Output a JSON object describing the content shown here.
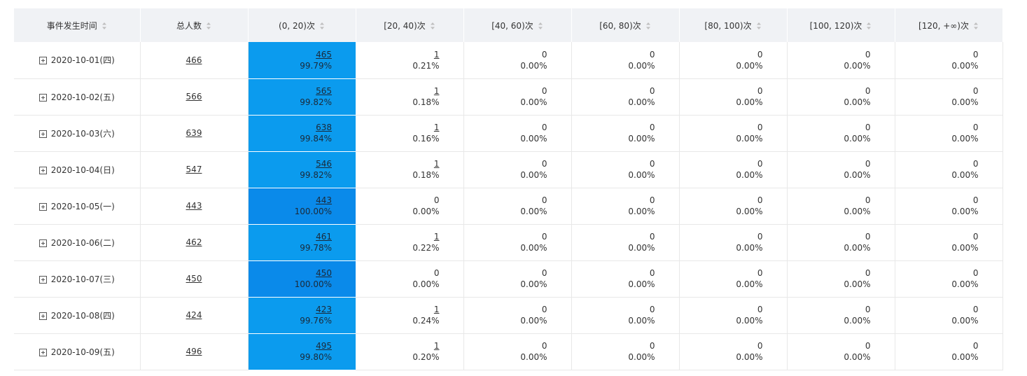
{
  "table": {
    "headers": [
      "事件发生时间",
      "总人数",
      "(0, 20)次",
      "[20, 40)次",
      "[40, 60)次",
      "[60, 80)次",
      "[80, 100)次",
      "[100, 120)次",
      "[120, +∞)次"
    ],
    "rows": [
      {
        "date": "2020-10-01(四)",
        "total": "466",
        "buckets": [
          {
            "count": "465",
            "pct": "99.79%"
          },
          {
            "count": "1",
            "pct": "0.21%"
          },
          {
            "count": "0",
            "pct": "0.00%"
          },
          {
            "count": "0",
            "pct": "0.00%"
          },
          {
            "count": "0",
            "pct": "0.00%"
          },
          {
            "count": "0",
            "pct": "0.00%"
          },
          {
            "count": "0",
            "pct": "0.00%"
          }
        ]
      },
      {
        "date": "2020-10-02(五)",
        "total": "566",
        "buckets": [
          {
            "count": "565",
            "pct": "99.82%"
          },
          {
            "count": "1",
            "pct": "0.18%"
          },
          {
            "count": "0",
            "pct": "0.00%"
          },
          {
            "count": "0",
            "pct": "0.00%"
          },
          {
            "count": "0",
            "pct": "0.00%"
          },
          {
            "count": "0",
            "pct": "0.00%"
          },
          {
            "count": "0",
            "pct": "0.00%"
          }
        ]
      },
      {
        "date": "2020-10-03(六)",
        "total": "639",
        "buckets": [
          {
            "count": "638",
            "pct": "99.84%"
          },
          {
            "count": "1",
            "pct": "0.16%"
          },
          {
            "count": "0",
            "pct": "0.00%"
          },
          {
            "count": "0",
            "pct": "0.00%"
          },
          {
            "count": "0",
            "pct": "0.00%"
          },
          {
            "count": "0",
            "pct": "0.00%"
          },
          {
            "count": "0",
            "pct": "0.00%"
          }
        ]
      },
      {
        "date": "2020-10-04(日)",
        "total": "547",
        "buckets": [
          {
            "count": "546",
            "pct": "99.82%"
          },
          {
            "count": "1",
            "pct": "0.18%"
          },
          {
            "count": "0",
            "pct": "0.00%"
          },
          {
            "count": "0",
            "pct": "0.00%"
          },
          {
            "count": "0",
            "pct": "0.00%"
          },
          {
            "count": "0",
            "pct": "0.00%"
          },
          {
            "count": "0",
            "pct": "0.00%"
          }
        ]
      },
      {
        "date": "2020-10-05(一)",
        "total": "443",
        "buckets": [
          {
            "count": "443",
            "pct": "100.00%"
          },
          {
            "count": "0",
            "pct": "0.00%"
          },
          {
            "count": "0",
            "pct": "0.00%"
          },
          {
            "count": "0",
            "pct": "0.00%"
          },
          {
            "count": "0",
            "pct": "0.00%"
          },
          {
            "count": "0",
            "pct": "0.00%"
          },
          {
            "count": "0",
            "pct": "0.00%"
          }
        ]
      },
      {
        "date": "2020-10-06(二)",
        "total": "462",
        "buckets": [
          {
            "count": "461",
            "pct": "99.78%"
          },
          {
            "count": "1",
            "pct": "0.22%"
          },
          {
            "count": "0",
            "pct": "0.00%"
          },
          {
            "count": "0",
            "pct": "0.00%"
          },
          {
            "count": "0",
            "pct": "0.00%"
          },
          {
            "count": "0",
            "pct": "0.00%"
          },
          {
            "count": "0",
            "pct": "0.00%"
          }
        ]
      },
      {
        "date": "2020-10-07(三)",
        "total": "450",
        "buckets": [
          {
            "count": "450",
            "pct": "100.00%"
          },
          {
            "count": "0",
            "pct": "0.00%"
          },
          {
            "count": "0",
            "pct": "0.00%"
          },
          {
            "count": "0",
            "pct": "0.00%"
          },
          {
            "count": "0",
            "pct": "0.00%"
          },
          {
            "count": "0",
            "pct": "0.00%"
          },
          {
            "count": "0",
            "pct": "0.00%"
          }
        ]
      },
      {
        "date": "2020-10-08(四)",
        "total": "424",
        "buckets": [
          {
            "count": "423",
            "pct": "99.76%"
          },
          {
            "count": "1",
            "pct": "0.24%"
          },
          {
            "count": "0",
            "pct": "0.00%"
          },
          {
            "count": "0",
            "pct": "0.00%"
          },
          {
            "count": "0",
            "pct": "0.00%"
          },
          {
            "count": "0",
            "pct": "0.00%"
          },
          {
            "count": "0",
            "pct": "0.00%"
          }
        ]
      },
      {
        "date": "2020-10-09(五)",
        "total": "496",
        "buckets": [
          {
            "count": "495",
            "pct": "99.80%"
          },
          {
            "count": "1",
            "pct": "0.20%"
          },
          {
            "count": "0",
            "pct": "0.00%"
          },
          {
            "count": "0",
            "pct": "0.00%"
          },
          {
            "count": "0",
            "pct": "0.00%"
          },
          {
            "count": "0",
            "pct": "0.00%"
          },
          {
            "count": "0",
            "pct": "0.00%"
          }
        ]
      }
    ]
  }
}
